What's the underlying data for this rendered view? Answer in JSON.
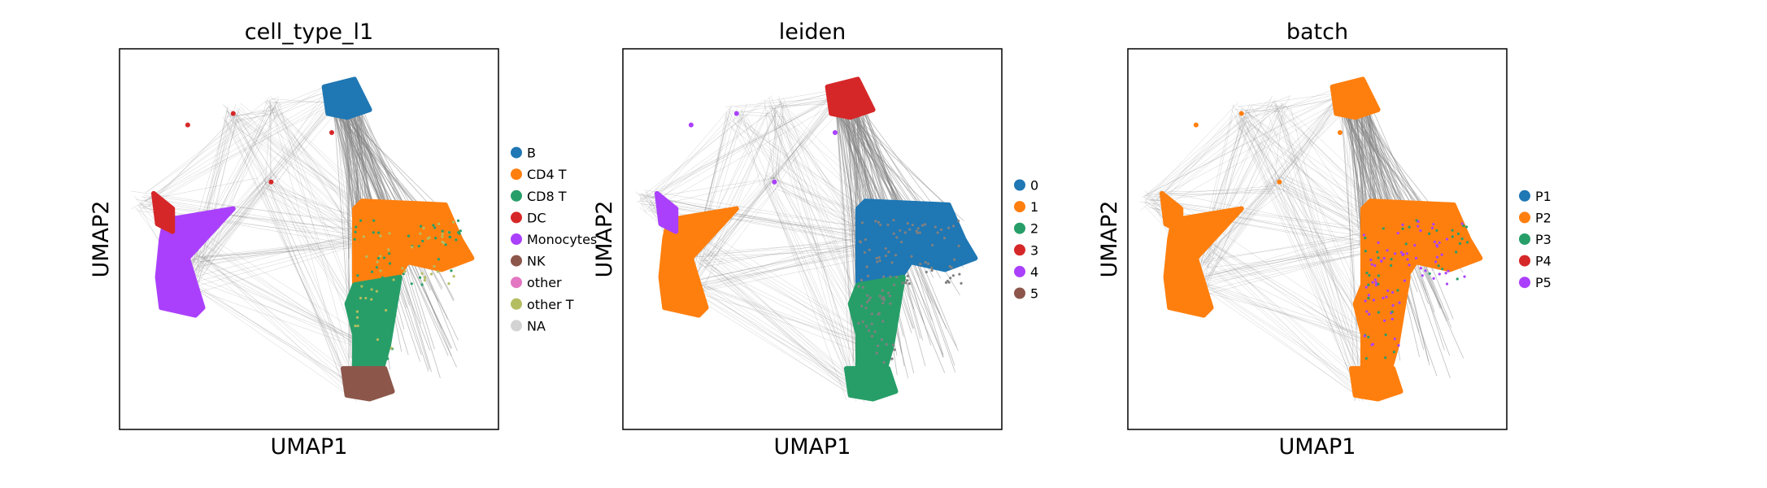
{
  "chart_data": [
    {
      "type": "scatter",
      "title": "cell_type_l1",
      "xlabel": "UMAP1",
      "ylabel": "UMAP2",
      "grid": false,
      "ticks": false,
      "legend_position": "right",
      "legend": [
        {
          "label": "B",
          "color": "#1f77b4"
        },
        {
          "label": "CD4 T",
          "color": "#ff7f0e"
        },
        {
          "label": "CD8 T",
          "color": "#279e68"
        },
        {
          "label": "DC",
          "color": "#d62728"
        },
        {
          "label": "Monocytes",
          "color": "#aa40fc"
        },
        {
          "label": "NK",
          "color": "#8c564b"
        },
        {
          "label": "other",
          "color": "#e377c2"
        },
        {
          "label": "other T",
          "color": "#b5bd61"
        },
        {
          "label": "NA",
          "color": "#d3d3d3"
        }
      ]
    },
    {
      "type": "scatter",
      "title": "leiden",
      "xlabel": "UMAP1",
      "ylabel": "UMAP2",
      "grid": false,
      "ticks": false,
      "legend_position": "right",
      "legend": [
        {
          "label": "0",
          "color": "#1f77b4"
        },
        {
          "label": "1",
          "color": "#ff7f0e"
        },
        {
          "label": "2",
          "color": "#279e68"
        },
        {
          "label": "3",
          "color": "#d62728"
        },
        {
          "label": "4",
          "color": "#aa40fc"
        },
        {
          "label": "5",
          "color": "#8c564b"
        }
      ]
    },
    {
      "type": "scatter",
      "title": "batch",
      "xlabel": "UMAP1",
      "ylabel": "UMAP2",
      "grid": false,
      "ticks": false,
      "legend_position": "right",
      "legend": [
        {
          "label": "P1",
          "color": "#1f77b4"
        },
        {
          "label": "P2",
          "color": "#ff7f0e"
        },
        {
          "label": "P3",
          "color": "#279e68"
        },
        {
          "label": "P4",
          "color": "#d62728"
        },
        {
          "label": "P5",
          "color": "#aa40fc"
        }
      ]
    }
  ]
}
